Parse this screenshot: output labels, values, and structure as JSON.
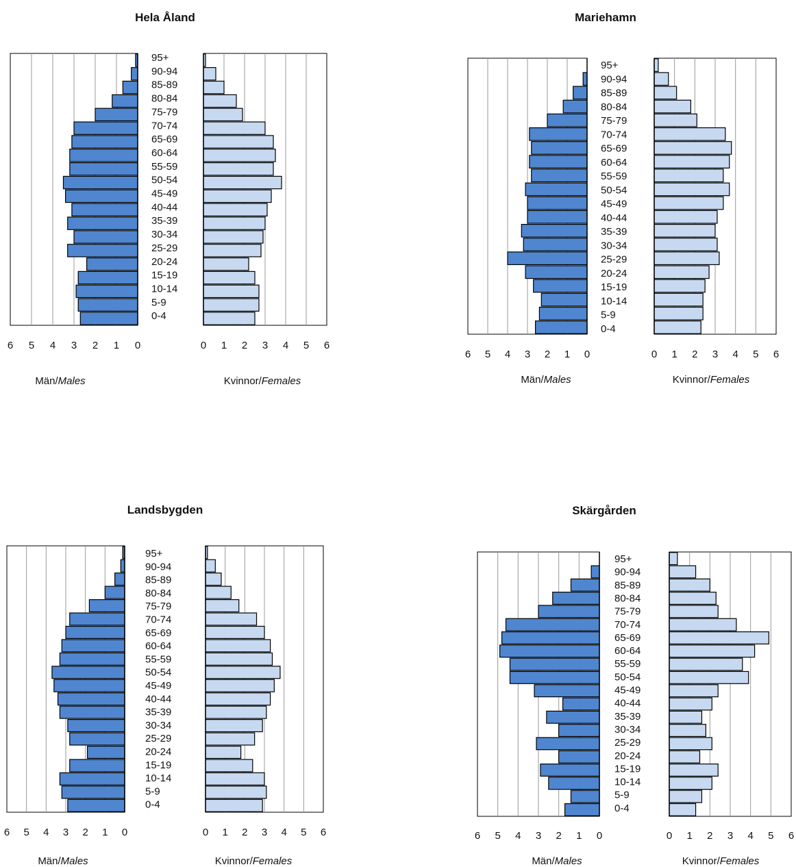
{
  "chart_data": [
    {
      "type": "bar",
      "title": "Hela Åland",
      "categories": [
        "95+",
        "90-94",
        "85-89",
        "80-84",
        "75-79",
        "70-74",
        "65-69",
        "60-64",
        "55-59",
        "50-54",
        "45-49",
        "40-44",
        "35-39",
        "30-34",
        "25-29",
        "20-24",
        "15-19",
        "10-14",
        "5-9",
        "0-4"
      ],
      "series": [
        {
          "name": "Män/Males",
          "values": [
            0.1,
            0.3,
            0.7,
            1.2,
            2.0,
            3.0,
            3.1,
            3.2,
            3.2,
            3.5,
            3.4,
            3.1,
            3.3,
            3.0,
            3.3,
            2.4,
            2.8,
            2.9,
            2.8,
            2.7
          ]
        },
        {
          "name": "Kvinnor/Females",
          "values": [
            0.1,
            0.6,
            1.0,
            1.6,
            1.9,
            3.0,
            3.4,
            3.5,
            3.4,
            3.8,
            3.3,
            3.1,
            3.0,
            2.9,
            2.8,
            2.2,
            2.5,
            2.7,
            2.7,
            2.5
          ]
        }
      ],
      "xlim": [
        0,
        6
      ],
      "xticks_left": [
        "6",
        "5",
        "4",
        "3",
        "2",
        "1",
        "0"
      ],
      "xticks_right": [
        "0",
        "1",
        "2",
        "3",
        "4",
        "5",
        "6"
      ],
      "xlabel_left": {
        "text": "Män",
        "italic": "Males"
      },
      "xlabel_right": {
        "text": "Kvinnor",
        "italic": "Females"
      }
    },
    {
      "type": "bar",
      "title": "Mariehamn",
      "categories": [
        "95+",
        "90-94",
        "85-89",
        "80-84",
        "75-79",
        "70-74",
        "65-69",
        "60-64",
        "55-59",
        "50-54",
        "45-49",
        "40-44",
        "35-39",
        "30-34",
        "25-29",
        "20-24",
        "15-19",
        "10-14",
        "5-9",
        "0-4"
      ],
      "series": [
        {
          "name": "Män/Males",
          "values": [
            0.0,
            0.2,
            0.7,
            1.2,
            2.0,
            2.9,
            2.8,
            2.9,
            2.8,
            3.1,
            3.0,
            3.0,
            3.3,
            3.2,
            4.0,
            3.1,
            2.7,
            2.3,
            2.4,
            2.6
          ]
        },
        {
          "name": "Kvinnor/Females",
          "values": [
            0.2,
            0.7,
            1.1,
            1.8,
            2.1,
            3.5,
            3.8,
            3.7,
            3.4,
            3.7,
            3.4,
            3.1,
            3.0,
            3.1,
            3.2,
            2.7,
            2.5,
            2.4,
            2.4,
            2.3
          ]
        }
      ],
      "xlim": [
        0,
        6
      ],
      "xticks_left": [
        "6",
        "5",
        "4",
        "3",
        "2",
        "1",
        "0"
      ],
      "xticks_right": [
        "0",
        "1",
        "2",
        "3",
        "4",
        "5",
        "6"
      ],
      "xlabel_left": {
        "text": "Män",
        "italic": "Males"
      },
      "xlabel_right": {
        "text": "Kvinnor",
        "italic": "Females"
      }
    },
    {
      "type": "bar",
      "title": "Landsbygden",
      "categories": [
        "95+",
        "90-94",
        "85-89",
        "80-84",
        "75-79",
        "70-74",
        "65-69",
        "60-64",
        "55-59",
        "50-54",
        "45-49",
        "40-44",
        "35-39",
        "30-34",
        "25-29",
        "20-24",
        "15-19",
        "10-14",
        "5-9",
        "0-4"
      ],
      "series": [
        {
          "name": "Män/Males",
          "values": [
            0.1,
            0.2,
            0.5,
            1.0,
            1.8,
            2.8,
            3.0,
            3.2,
            3.3,
            3.7,
            3.6,
            3.4,
            3.3,
            2.9,
            2.8,
            1.9,
            2.8,
            3.3,
            3.2,
            2.9
          ]
        },
        {
          "name": "Kvinnor/Females",
          "values": [
            0.1,
            0.5,
            0.8,
            1.3,
            1.7,
            2.6,
            3.0,
            3.3,
            3.4,
            3.8,
            3.5,
            3.3,
            3.1,
            2.9,
            2.5,
            1.8,
            2.4,
            3.0,
            3.1,
            2.9
          ]
        }
      ],
      "xlim": [
        0,
        6
      ],
      "xticks_left": [
        "6",
        "5",
        "4",
        "3",
        "2",
        "1",
        "0"
      ],
      "xticks_right": [
        "0",
        "1",
        "2",
        "3",
        "4",
        "5",
        "6"
      ],
      "xlabel_left": {
        "text": "Män",
        "italic": "Males"
      },
      "xlabel_right": {
        "text": "Kvinnor",
        "italic": "Females"
      }
    },
    {
      "type": "bar",
      "title": "Skärgården",
      "categories": [
        "95+",
        "90-94",
        "85-89",
        "80-84",
        "75-79",
        "70-74",
        "65-69",
        "60-64",
        "55-59",
        "50-54",
        "45-49",
        "40-44",
        "35-39",
        "30-34",
        "25-29",
        "20-24",
        "15-19",
        "10-14",
        "5-9",
        "0-4"
      ],
      "series": [
        {
          "name": "Män/Males",
          "values": [
            0.0,
            0.4,
            1.4,
            2.3,
            3.0,
            4.6,
            4.8,
            4.9,
            4.4,
            4.4,
            3.2,
            1.8,
            2.6,
            2.0,
            3.1,
            2.0,
            2.9,
            2.5,
            1.4,
            1.7
          ]
        },
        {
          "name": "Kvinnor/Females",
          "values": [
            0.4,
            1.3,
            2.0,
            2.3,
            2.4,
            3.3,
            4.9,
            4.2,
            3.6,
            3.9,
            2.4,
            2.1,
            1.6,
            1.8,
            2.1,
            1.5,
            2.4,
            2.1,
            1.6,
            1.3
          ]
        }
      ],
      "xlim": [
        0,
        6
      ],
      "xticks_left": [
        "6",
        "5",
        "4",
        "3",
        "2",
        "1",
        "0"
      ],
      "xticks_right": [
        "0",
        "1",
        "2",
        "3",
        "4",
        "5",
        "6"
      ],
      "xlabel_left": {
        "text": "Män",
        "italic": "Males"
      },
      "xlabel_right": {
        "text": "Kvinnor",
        "italic": "Females"
      }
    }
  ],
  "colors": {
    "males": "#4f86cf",
    "females": "#c6d9f1",
    "border": "#000000",
    "grid": "#999999"
  }
}
